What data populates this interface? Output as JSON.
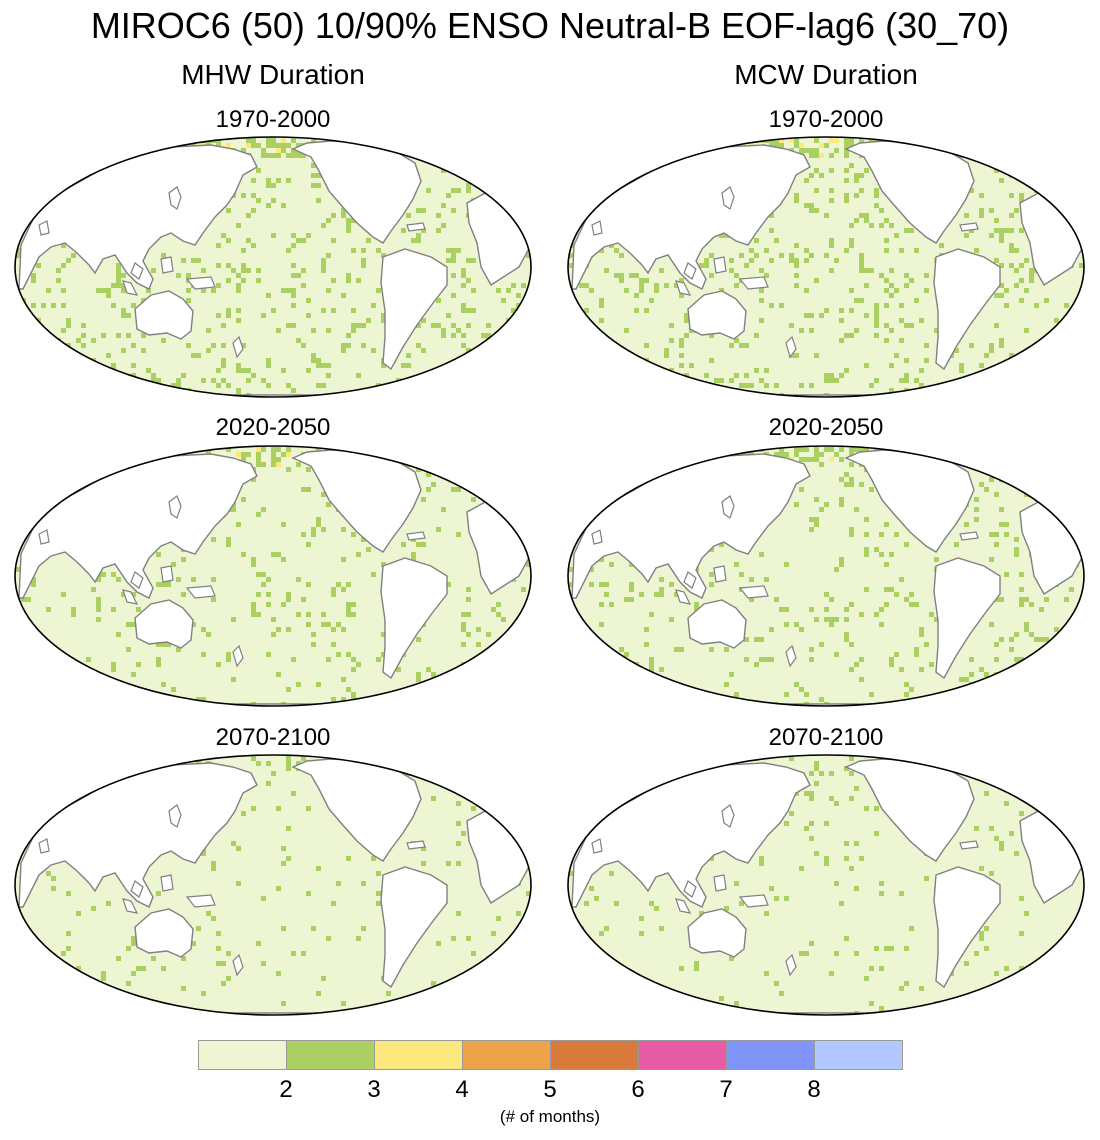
{
  "title": "MIROC6 (50) 10/90% ENSO Neutral-B EOF-lag6 (30_70)",
  "columns": [
    {
      "title": "MHW Duration"
    },
    {
      "title": "MCW Duration"
    }
  ],
  "panels": [
    {
      "column": "MHW Duration",
      "period": "1970-2000",
      "dominant_class": "1-2",
      "secondary_class": "2-3",
      "max_class": "3-4",
      "green_fraction": 0.12,
      "yellow_fraction": 0.004,
      "seed": 11
    },
    {
      "column": "MCW Duration",
      "period": "1970-2000",
      "dominant_class": "1-2",
      "secondary_class": "2-3",
      "max_class": "3-4",
      "green_fraction": 0.11,
      "yellow_fraction": 0.004,
      "seed": 23
    },
    {
      "column": "MHW Duration",
      "period": "2020-2050",
      "dominant_class": "1-2",
      "secondary_class": "2-3",
      "max_class": "3-4",
      "green_fraction": 0.07,
      "yellow_fraction": 0.002,
      "seed": 37
    },
    {
      "column": "MCW Duration",
      "period": "2020-2050",
      "dominant_class": "1-2",
      "secondary_class": "2-3",
      "max_class": "3-4",
      "green_fraction": 0.08,
      "yellow_fraction": 0.002,
      "seed": 41
    },
    {
      "column": "MHW Duration",
      "period": "2070-2100",
      "dominant_class": "1-2",
      "secondary_class": "2-3",
      "max_class": "2-3",
      "green_fraction": 0.04,
      "yellow_fraction": 0.0,
      "seed": 53
    },
    {
      "column": "MCW Duration",
      "period": "2070-2100",
      "dominant_class": "1-2",
      "secondary_class": "2-3",
      "max_class": "2-3",
      "green_fraction": 0.035,
      "yellow_fraction": 0.0,
      "seed": 67
    }
  ],
  "colors": {
    "land": "#ffffff",
    "coastline": "#808080",
    "border": "#000000",
    "missing": "#ffffff"
  },
  "colorbar": {
    "colors": [
      "#eef5d2",
      "#aad062",
      "#fde77f",
      "#eda34b",
      "#d9793c",
      "#e85ba5",
      "#8095fc",
      "#b2c8fe"
    ],
    "labels": [
      "2",
      "3",
      "4",
      "5",
      "6",
      "7",
      "8"
    ],
    "units": "(# of months)"
  }
}
